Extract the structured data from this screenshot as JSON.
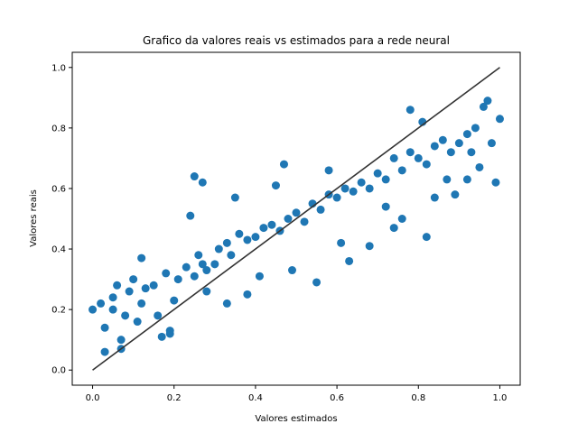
{
  "chart_data": {
    "type": "scatter",
    "title": "Grafico da valores reais vs estimados para a rede neural",
    "xlabel": "Valores estimados",
    "ylabel": "Valores reais",
    "xlim": [
      -0.05,
      1.05
    ],
    "ylim": [
      -0.05,
      1.05
    ],
    "xticks": [
      0.0,
      0.2,
      0.4,
      0.6,
      0.8,
      1.0
    ],
    "yticks": [
      0.0,
      0.2,
      0.4,
      0.6,
      0.8,
      1.0
    ],
    "xtick_labels": [
      "0.0",
      "0.2",
      "0.4",
      "0.6",
      "0.8",
      "1.0"
    ],
    "ytick_labels": [
      "0.0",
      "0.2",
      "0.4",
      "0.6",
      "0.8",
      "1.0"
    ],
    "grid": false,
    "point_color": "#1f77b4",
    "reference_line": {
      "x": [
        0.0,
        1.0
      ],
      "y": [
        0.0,
        1.0
      ],
      "color": "#333333"
    },
    "points": {
      "x": [
        0.0,
        0.02,
        0.03,
        0.05,
        0.06,
        0.07,
        0.08,
        0.09,
        0.1,
        0.12,
        0.13,
        0.15,
        0.17,
        0.18,
        0.19,
        0.2,
        0.21,
        0.23,
        0.25,
        0.26,
        0.27,
        0.28,
        0.3,
        0.31,
        0.33,
        0.34,
        0.36,
        0.38,
        0.4,
        0.42,
        0.44,
        0.46,
        0.48,
        0.5,
        0.52,
        0.54,
        0.56,
        0.58,
        0.6,
        0.62,
        0.64,
        0.66,
        0.68,
        0.7,
        0.72,
        0.74,
        0.76,
        0.78,
        0.8,
        0.82,
        0.84,
        0.86,
        0.88,
        0.9,
        0.92,
        0.94,
        0.96,
        0.98,
        1.0,
        0.03,
        0.07,
        0.12,
        0.19,
        0.25,
        0.27,
        0.33,
        0.41,
        0.47,
        0.55,
        0.63,
        0.72,
        0.78,
        0.81,
        0.87,
        0.93,
        0.97,
        0.99,
        0.11,
        0.24,
        0.35,
        0.45,
        0.58,
        0.68,
        0.76,
        0.82,
        0.89,
        0.95,
        0.05,
        0.16,
        0.28,
        0.38,
        0.49,
        0.61,
        0.74,
        0.84,
        0.92
      ],
      "y": [
        0.2,
        0.22,
        0.06,
        0.24,
        0.28,
        0.1,
        0.18,
        0.26,
        0.3,
        0.22,
        0.27,
        0.28,
        0.11,
        0.32,
        0.12,
        0.23,
        0.3,
        0.34,
        0.31,
        0.38,
        0.35,
        0.33,
        0.35,
        0.4,
        0.42,
        0.38,
        0.45,
        0.43,
        0.44,
        0.47,
        0.48,
        0.46,
        0.5,
        0.52,
        0.49,
        0.55,
        0.53,
        0.58,
        0.57,
        0.6,
        0.59,
        0.62,
        0.6,
        0.65,
        0.63,
        0.7,
        0.66,
        0.72,
        0.7,
        0.68,
        0.74,
        0.76,
        0.72,
        0.75,
        0.78,
        0.8,
        0.87,
        0.75,
        0.83,
        0.14,
        0.07,
        0.37,
        0.13,
        0.64,
        0.62,
        0.22,
        0.31,
        0.68,
        0.29,
        0.36,
        0.54,
        0.86,
        0.82,
        0.63,
        0.72,
        0.89,
        0.62,
        0.16,
        0.51,
        0.57,
        0.61,
        0.66,
        0.41,
        0.5,
        0.44,
        0.58,
        0.67,
        0.2,
        0.18,
        0.26,
        0.25,
        0.33,
        0.42,
        0.47,
        0.57,
        0.63
      ]
    }
  }
}
